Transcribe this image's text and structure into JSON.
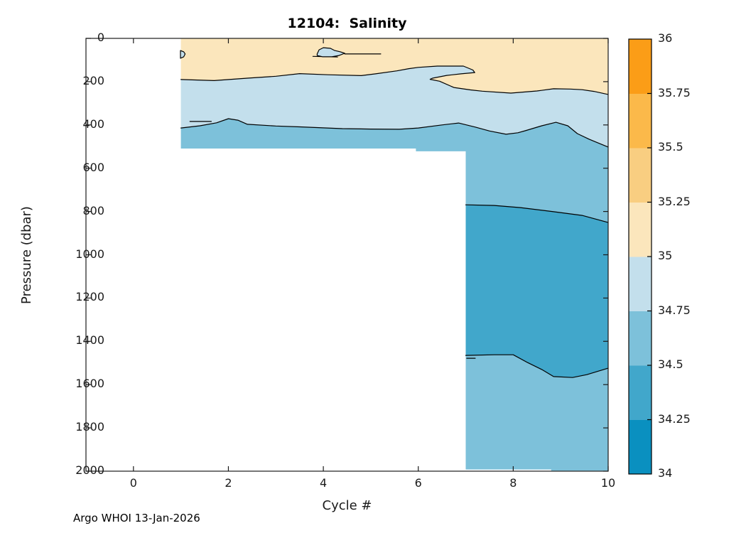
{
  "title": "12104:  Salinity",
  "footer": "Argo WHOI 13-Jan-2026",
  "chart_data": {
    "type": "filled_contour",
    "title": "12104:  Salinity",
    "xlabel": "Cycle #",
    "ylabel": "Pressure (dbar)",
    "xlim": [
      -1,
      10
    ],
    "ylim": [
      0,
      2000
    ],
    "y_axis_reversed": true,
    "grid": false,
    "x_ticks": [
      0,
      2,
      4,
      6,
      8,
      10
    ],
    "y_ticks": [
      0,
      200,
      400,
      600,
      800,
      1000,
      1200,
      1400,
      1600,
      1800,
      2000
    ],
    "levels_drawn": [
      34.5,
      34.75,
      35.0
    ],
    "data_coverage": "cycles 1-10 from 0 to ~510 dbar; cycles 7-10 from 0 to ~1995 dbar",
    "colorbar": {
      "levels": [
        34,
        34.25,
        34.5,
        34.75,
        35,
        35.25,
        35.5,
        35.75,
        36
      ],
      "tick_labels": [
        "34",
        "34.25",
        "34.5",
        "34.75",
        "35",
        "35.25",
        "35.5",
        "35.75",
        "36"
      ],
      "band_colors": [
        "#0A90C0",
        "#41A7CB",
        "#7DC1DA",
        "#C3DFEC",
        "#FBE6BC",
        "#F9CE81",
        "#FBB94A",
        "#FB9D17"
      ]
    },
    "bands": [
      {
        "range": "35.00-35.25",
        "color": "#FBE6BC",
        "polygon": [
          [
            1,
            0
          ],
          [
            10,
            0
          ],
          [
            10,
            259
          ],
          [
            9.7,
            245
          ],
          [
            9.45,
            237
          ],
          [
            9.2,
            234
          ],
          [
            8.85,
            233
          ],
          [
            8.5,
            243
          ],
          [
            7.95,
            253
          ],
          [
            7.35,
            244
          ],
          [
            7.1,
            238
          ],
          [
            6.75,
            227
          ],
          [
            6.45,
            198
          ],
          [
            6.25,
            189
          ],
          [
            6.3,
            184
          ],
          [
            6.6,
            171
          ],
          [
            6.9,
            164
          ],
          [
            7.19,
            158
          ],
          [
            7.15,
            146
          ],
          [
            6.95,
            128
          ],
          [
            6.4,
            128
          ],
          [
            6.0,
            134
          ],
          [
            5.8,
            140
          ],
          [
            5.55,
            150
          ],
          [
            5.1,
            164
          ],
          [
            4.8,
            172
          ],
          [
            4.1,
            168
          ],
          [
            3.5,
            163
          ],
          [
            3,
            175
          ],
          [
            2.4,
            184
          ],
          [
            1.7,
            195
          ],
          [
            1,
            190
          ]
        ]
      },
      {
        "range": "34.75-35.00",
        "color": "#C3DFEC",
        "polygon": [
          [
            1,
            190
          ],
          [
            1.7,
            195
          ],
          [
            2.4,
            184
          ],
          [
            3,
            175
          ],
          [
            3.5,
            163
          ],
          [
            4.1,
            168
          ],
          [
            4.8,
            172
          ],
          [
            5.1,
            164
          ],
          [
            5.55,
            150
          ],
          [
            5.8,
            140
          ],
          [
            6.0,
            134
          ],
          [
            6.4,
            128
          ],
          [
            6.95,
            128
          ],
          [
            7.15,
            146
          ],
          [
            7.19,
            158
          ],
          [
            6.9,
            164
          ],
          [
            6.6,
            171
          ],
          [
            6.3,
            184
          ],
          [
            6.25,
            189
          ],
          [
            6.45,
            198
          ],
          [
            6.75,
            227
          ],
          [
            7.1,
            238
          ],
          [
            7.35,
            244
          ],
          [
            7.95,
            253
          ],
          [
            8.5,
            243
          ],
          [
            8.85,
            233
          ],
          [
            9.2,
            234
          ],
          [
            9.45,
            237
          ],
          [
            9.7,
            245
          ],
          [
            10,
            259
          ],
          [
            10,
            502
          ],
          [
            9.8,
            484
          ],
          [
            9.6,
            466
          ],
          [
            9.35,
            440
          ],
          [
            9.15,
            404
          ],
          [
            8.9,
            388
          ],
          [
            8.6,
            404
          ],
          [
            8.25,
            427
          ],
          [
            8.1,
            436
          ],
          [
            7.85,
            443
          ],
          [
            7.5,
            428
          ],
          [
            7.2,
            410
          ],
          [
            6.85,
            391
          ],
          [
            6.5,
            400
          ],
          [
            6.0,
            414
          ],
          [
            5.6,
            420
          ],
          [
            5.0,
            419
          ],
          [
            4.4,
            417
          ],
          [
            3.0,
            405
          ],
          [
            2.4,
            397
          ],
          [
            2.2,
            378
          ],
          [
            2.0,
            371
          ],
          [
            1.75,
            390
          ],
          [
            1.4,
            404
          ],
          [
            1,
            414
          ]
        ]
      },
      {
        "range": "34.50-34.75-upper",
        "color": "#7DC1DA",
        "polygon": [
          [
            1,
            414
          ],
          [
            1.4,
            404
          ],
          [
            1.75,
            390
          ],
          [
            2.0,
            371
          ],
          [
            2.2,
            378
          ],
          [
            2.4,
            397
          ],
          [
            3.0,
            405
          ],
          [
            3.5,
            409
          ],
          [
            4.4,
            417
          ],
          [
            5.0,
            419
          ],
          [
            5.6,
            420
          ],
          [
            6.0,
            414
          ],
          [
            6.5,
            400
          ],
          [
            6.85,
            391
          ],
          [
            7.2,
            410
          ],
          [
            7.5,
            428
          ],
          [
            7.85,
            443
          ],
          [
            8.1,
            436
          ],
          [
            8.25,
            427
          ],
          [
            8.6,
            404
          ],
          [
            8.9,
            388
          ],
          [
            9.15,
            404
          ],
          [
            9.35,
            440
          ],
          [
            9.6,
            466
          ],
          [
            9.8,
            484
          ],
          [
            10,
            502
          ],
          [
            10,
            851
          ],
          [
            9.45,
            818
          ],
          [
            8.85,
            801
          ],
          [
            8.15,
            782
          ],
          [
            7.6,
            772
          ],
          [
            7,
            769
          ],
          [
            7,
            522
          ],
          [
            5.95,
            522
          ],
          [
            5.95,
            509
          ],
          [
            1,
            509
          ]
        ]
      },
      {
        "range": "34.25-34.50",
        "color": "#41A7CB",
        "polygon": [
          [
            7,
            769
          ],
          [
            7.6,
            772
          ],
          [
            8.15,
            782
          ],
          [
            8.85,
            801
          ],
          [
            9.45,
            818
          ],
          [
            10,
            851
          ],
          [
            10,
            1524
          ],
          [
            9.55,
            1554
          ],
          [
            9.25,
            1567
          ],
          [
            8.85,
            1563
          ],
          [
            8.6,
            1530
          ],
          [
            8.3,
            1498
          ],
          [
            8.0,
            1462
          ],
          [
            7.6,
            1462
          ],
          [
            7,
            1465
          ]
        ]
      },
      {
        "range": "34.50-34.75-lower",
        "color": "#7DC1DA",
        "polygon": [
          [
            7,
            1465
          ],
          [
            7.6,
            1462
          ],
          [
            8.0,
            1462
          ],
          [
            8.3,
            1498
          ],
          [
            8.6,
            1530
          ],
          [
            8.85,
            1563
          ],
          [
            9.25,
            1567
          ],
          [
            9.55,
            1554
          ],
          [
            10,
            1524
          ],
          [
            10,
            1998
          ],
          [
            8.8,
            1998
          ],
          [
            8.8,
            1992
          ],
          [
            7,
            1992
          ]
        ]
      }
    ],
    "contour_lines": [
      {
        "level": "35",
        "points": [
          [
            1,
            190
          ],
          [
            1.7,
            195
          ],
          [
            2.4,
            184
          ],
          [
            3,
            175
          ],
          [
            3.5,
            163
          ],
          [
            4.1,
            168
          ],
          [
            4.8,
            172
          ],
          [
            5.1,
            164
          ],
          [
            5.55,
            150
          ],
          [
            5.8,
            140
          ],
          [
            6.0,
            134
          ],
          [
            6.4,
            128
          ],
          [
            6.95,
            128
          ],
          [
            7.15,
            146
          ],
          [
            7.19,
            158
          ],
          [
            6.9,
            164
          ],
          [
            6.6,
            171
          ],
          [
            6.3,
            184
          ],
          [
            6.25,
            189
          ],
          [
            6.45,
            198
          ],
          [
            6.75,
            227
          ],
          [
            7.1,
            238
          ],
          [
            7.35,
            244
          ],
          [
            7.95,
            253
          ],
          [
            8.5,
            243
          ],
          [
            8.85,
            233
          ],
          [
            9.2,
            234
          ],
          [
            9.45,
            237
          ],
          [
            9.7,
            245
          ],
          [
            10,
            259
          ]
        ]
      },
      {
        "level": "34.75",
        "points": [
          [
            1,
            414
          ],
          [
            1.4,
            404
          ],
          [
            1.75,
            390
          ],
          [
            2.0,
            371
          ],
          [
            2.2,
            378
          ],
          [
            2.4,
            397
          ],
          [
            3.0,
            405
          ],
          [
            3.5,
            409
          ],
          [
            4.4,
            417
          ],
          [
            5.0,
            419
          ],
          [
            5.6,
            420
          ],
          [
            6.0,
            414
          ],
          [
            6.5,
            400
          ],
          [
            6.85,
            391
          ],
          [
            7.2,
            410
          ],
          [
            7.5,
            428
          ],
          [
            7.85,
            443
          ],
          [
            8.1,
            436
          ],
          [
            8.25,
            427
          ],
          [
            8.6,
            404
          ],
          [
            8.9,
            388
          ],
          [
            9.15,
            404
          ],
          [
            9.35,
            440
          ],
          [
            9.6,
            466
          ],
          [
            9.8,
            484
          ],
          [
            10,
            502
          ]
        ]
      },
      {
        "level": "34.5-upper",
        "points": [
          [
            7,
            769
          ],
          [
            7.6,
            772
          ],
          [
            8.15,
            782
          ],
          [
            8.85,
            801
          ],
          [
            9.45,
            818
          ],
          [
            10,
            851
          ]
        ]
      },
      {
        "level": "34.5-lower",
        "points": [
          [
            7,
            1465
          ],
          [
            7.6,
            1462
          ],
          [
            8.0,
            1462
          ],
          [
            8.3,
            1498
          ],
          [
            8.6,
            1530
          ],
          [
            8.85,
            1563
          ],
          [
            9.25,
            1567
          ],
          [
            9.55,
            1554
          ],
          [
            10,
            1524
          ]
        ]
      },
      {
        "level": "34.75-fragment",
        "points": [
          [
            1.19,
            384
          ],
          [
            1.64,
            384
          ]
        ]
      },
      {
        "level": "34.5-fragment",
        "points": [
          [
            7.02,
            1478
          ],
          [
            7.2,
            1478
          ]
        ]
      },
      {
        "level": "35-blob-tail",
        "points": [
          [
            4.45,
            72
          ],
          [
            5.21,
            72
          ]
        ]
      },
      {
        "level": "35-blob-underline",
        "points": [
          [
            3.78,
            83
          ],
          [
            4.3,
            86
          ]
        ]
      }
    ],
    "blobs": [
      {
        "level": "35",
        "color": "#C3DFEC",
        "polygon": [
          [
            0.99,
            56
          ],
          [
            1.06,
            62
          ],
          [
            1.09,
            72
          ],
          [
            1.06,
            85
          ],
          [
            0.99,
            92
          ]
        ]
      },
      {
        "level": "35",
        "color": "#C3DFEC",
        "polygon": [
          [
            3.87,
            72
          ],
          [
            3.91,
            53
          ],
          [
            4.0,
            43
          ],
          [
            4.15,
            46
          ],
          [
            4.24,
            56
          ],
          [
            4.36,
            62
          ],
          [
            4.45,
            69
          ],
          [
            4.33,
            79
          ],
          [
            4.18,
            85
          ],
          [
            3.99,
            85
          ],
          [
            3.87,
            79
          ]
        ]
      }
    ]
  }
}
